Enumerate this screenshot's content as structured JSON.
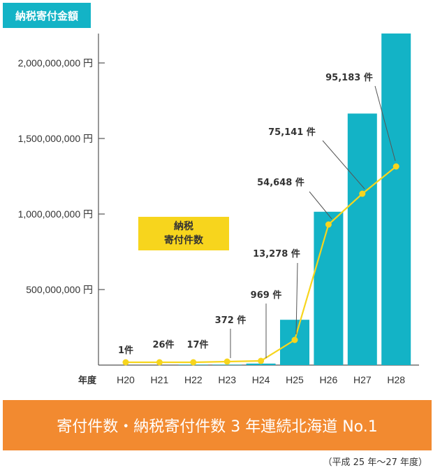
{
  "badge": {
    "amount_title": "納税寄付金額"
  },
  "count_label": {
    "line1": "納税",
    "line2": "寄付件数"
  },
  "banner": {
    "text": "寄付件数・納税寄付件数 3 年連続北海道 No.1"
  },
  "footnote": {
    "text": "（平成 25 年〜27 年度）"
  },
  "colors": {
    "bar": "#13b3c6",
    "line": "#f7d51d",
    "banner": "#f28a30"
  },
  "chart_data": {
    "type": "bar",
    "xlabel": "年度",
    "categories": [
      "H20",
      "H21",
      "H22",
      "H23",
      "H24",
      "H25",
      "H26",
      "H27",
      "H28"
    ],
    "yticks": [
      "500,000,000 円",
      "1,000,000,000 円",
      "1,500,000,000 円",
      "2,000,000,000 円"
    ],
    "ylim": [
      0,
      2150000000
    ],
    "series": [
      {
        "values": [
          0,
          0,
          3000000,
          3000000,
          10000000,
          300000000,
          1015000000,
          1665000000,
          2195000000
        ]
      },
      {
        "type": "line",
        "values": [
          1,
          26,
          17,
          372,
          969,
          13278,
          54648,
          75141,
          95183
        ],
        "labels": [
          "1件",
          "26件",
          "17件",
          "372 件",
          "969 件",
          "13,278 件",
          "54,648 件",
          "75,141 件",
          "95,183 件"
        ]
      }
    ]
  }
}
